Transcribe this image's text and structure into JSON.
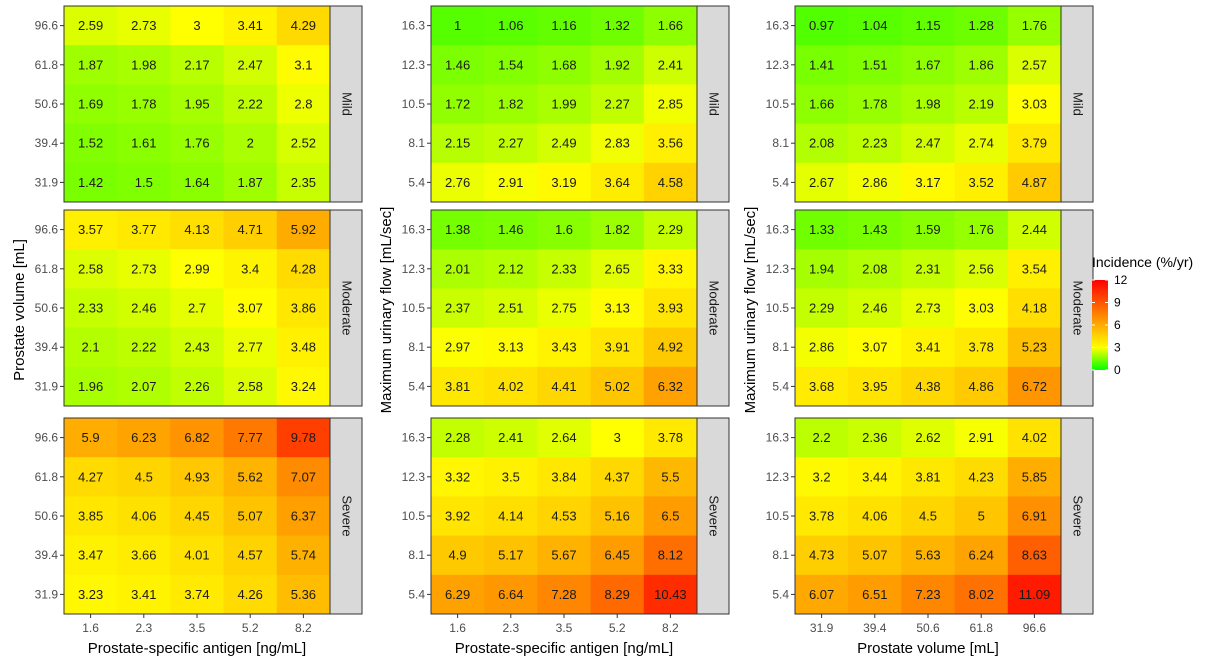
{
  "chart_data": {
    "type": "heatmap",
    "legend": {
      "title": "Incidence (%/yr)",
      "min": 0,
      "max": 12,
      "ticks": [
        0,
        3,
        6,
        9,
        12
      ],
      "colors": [
        "#00ff00",
        "#ffff00",
        "#ff0000"
      ]
    },
    "severities": [
      "Mild",
      "Moderate",
      "Severe"
    ],
    "panels": [
      {
        "xlabel": "Prostate-specific antigen [ng/mL]",
        "ylabel": "Prostate volume [mL]",
        "x": [
          "1.6",
          "2.3",
          "3.5",
          "5.2",
          "8.2"
        ],
        "y": [
          "96.6",
          "61.8",
          "50.6",
          "39.4",
          "31.9"
        ],
        "values": {
          "Mild": [
            [
              2.59,
              2.73,
              3,
              3.41,
              4.29
            ],
            [
              1.87,
              1.98,
              2.17,
              2.47,
              3.1
            ],
            [
              1.69,
              1.78,
              1.95,
              2.22,
              2.8
            ],
            [
              1.52,
              1.61,
              1.76,
              2,
              2.52
            ],
            [
              1.42,
              1.5,
              1.64,
              1.87,
              2.35
            ]
          ],
          "Moderate": [
            [
              3.57,
              3.77,
              4.13,
              4.71,
              5.92
            ],
            [
              2.58,
              2.73,
              2.99,
              3.4,
              4.28
            ],
            [
              2.33,
              2.46,
              2.7,
              3.07,
              3.86
            ],
            [
              2.1,
              2.22,
              2.43,
              2.77,
              3.48
            ],
            [
              1.96,
              2.07,
              2.26,
              2.58,
              3.24
            ]
          ],
          "Severe": [
            [
              5.9,
              6.23,
              6.82,
              7.77,
              9.78
            ],
            [
              4.27,
              4.5,
              4.93,
              5.62,
              7.07
            ],
            [
              3.85,
              4.06,
              4.45,
              5.07,
              6.37
            ],
            [
              3.47,
              3.66,
              4.01,
              4.57,
              5.74
            ],
            [
              3.23,
              3.41,
              3.74,
              4.26,
              5.36
            ]
          ]
        }
      },
      {
        "xlabel": "Prostate-specific antigen [ng/mL]",
        "ylabel": "Maximum urinary flow [mL/sec]",
        "x": [
          "1.6",
          "2.3",
          "3.5",
          "5.2",
          "8.2"
        ],
        "y": [
          "16.3",
          "12.3",
          "10.5",
          "8.1",
          "5.4"
        ],
        "values": {
          "Mild": [
            [
              1,
              1.06,
              1.16,
              1.32,
              1.66
            ],
            [
              1.46,
              1.54,
              1.68,
              1.92,
              2.41
            ],
            [
              1.72,
              1.82,
              1.99,
              2.27,
              2.85
            ],
            [
              2.15,
              2.27,
              2.49,
              2.83,
              3.56
            ],
            [
              2.76,
              2.91,
              3.19,
              3.64,
              4.58
            ]
          ],
          "Moderate": [
            [
              1.38,
              1.46,
              1.6,
              1.82,
              2.29
            ],
            [
              2.01,
              2.12,
              2.33,
              2.65,
              3.33
            ],
            [
              2.37,
              2.51,
              2.75,
              3.13,
              3.93
            ],
            [
              2.97,
              3.13,
              3.43,
              3.91,
              4.92
            ],
            [
              3.81,
              4.02,
              4.41,
              5.02,
              6.32
            ]
          ],
          "Severe": [
            [
              2.28,
              2.41,
              2.64,
              3,
              3.78
            ],
            [
              3.32,
              3.5,
              3.84,
              4.37,
              5.5
            ],
            [
              3.92,
              4.14,
              4.53,
              5.16,
              6.5
            ],
            [
              4.9,
              5.17,
              5.67,
              6.45,
              8.12
            ],
            [
              6.29,
              6.64,
              7.28,
              8.29,
              10.43
            ]
          ]
        }
      },
      {
        "xlabel": "Prostate volume [mL]",
        "ylabel": "Maximum urinary flow [mL/sec]",
        "x": [
          "31.9",
          "39.4",
          "50.6",
          "61.8",
          "96.6"
        ],
        "y": [
          "16.3",
          "12.3",
          "10.5",
          "8.1",
          "5.4"
        ],
        "values": {
          "Mild": [
            [
              0.97,
              1.04,
              1.15,
              1.28,
              1.76
            ],
            [
              1.41,
              1.51,
              1.67,
              1.86,
              2.57
            ],
            [
              1.66,
              1.78,
              1.98,
              2.19,
              3.03
            ],
            [
              2.08,
              2.23,
              2.47,
              2.74,
              3.79
            ],
            [
              2.67,
              2.86,
              3.17,
              3.52,
              4.87
            ]
          ],
          "Moderate": [
            [
              1.33,
              1.43,
              1.59,
              1.76,
              2.44
            ],
            [
              1.94,
              2.08,
              2.31,
              2.56,
              3.54
            ],
            [
              2.29,
              2.46,
              2.73,
              3.03,
              4.18
            ],
            [
              2.86,
              3.07,
              3.41,
              3.78,
              5.23
            ],
            [
              3.68,
              3.95,
              4.38,
              4.86,
              6.72
            ]
          ],
          "Severe": [
            [
              2.2,
              2.36,
              2.62,
              2.91,
              4.02
            ],
            [
              3.2,
              3.44,
              3.81,
              4.23,
              5.85
            ],
            [
              3.78,
              4.06,
              4.5,
              5,
              6.91
            ],
            [
              4.73,
              5.07,
              5.63,
              6.24,
              8.63
            ],
            [
              6.07,
              6.51,
              7.23,
              8.02,
              11.09
            ]
          ]
        }
      }
    ]
  }
}
